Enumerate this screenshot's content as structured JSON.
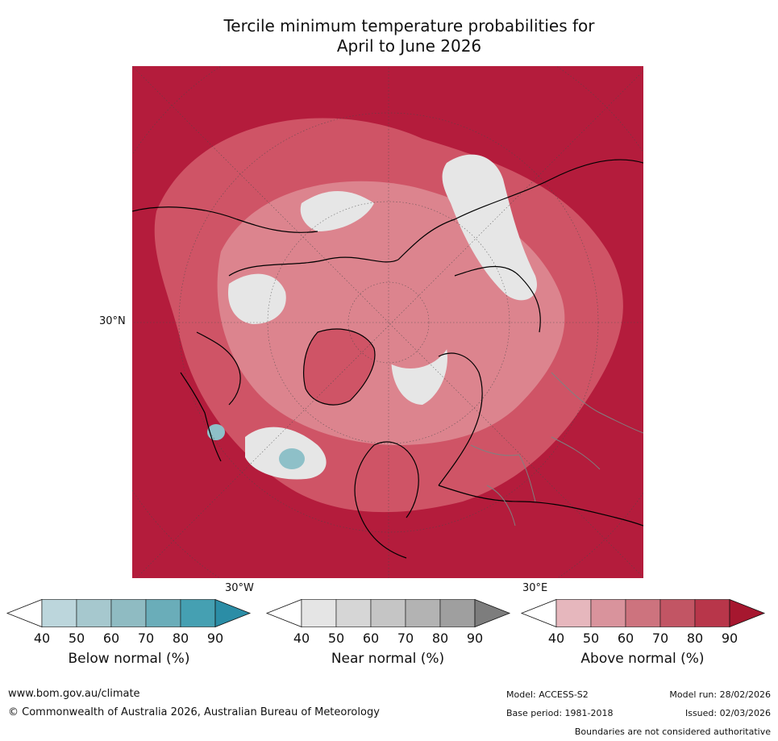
{
  "title": {
    "line1": "Tercile minimum temperature probabilities for",
    "line2": "April to June 2026"
  },
  "map": {
    "lat_label": "30°N",
    "lon_label_west": "30°W",
    "lon_label_east": "30°E",
    "colors": {
      "above_high": "#b41c3c",
      "above_mid": "#cf5466",
      "above_low": "#dc848e",
      "near_normal": "#e6e6e6",
      "below_normal": "#8ec0c8",
      "ocean_deep": "#b01a38",
      "coastline": "#000000",
      "border": "#808080"
    }
  },
  "colorbars": [
    {
      "label": "Below normal (%)",
      "ticks": [
        "40",
        "50",
        "60",
        "70",
        "80",
        "90"
      ],
      "colors": [
        "#ffffff",
        "#bcd6dc",
        "#a6c8ce",
        "#8fbbc2",
        "#6aadb9",
        "#45a0b2",
        "#2b8da6"
      ]
    },
    {
      "label": "Near normal (%)",
      "ticks": [
        "40",
        "50",
        "60",
        "70",
        "80",
        "90"
      ],
      "colors": [
        "#ffffff",
        "#e5e5e5",
        "#d6d6d6",
        "#c5c5c5",
        "#b3b3b3",
        "#9f9f9f",
        "#7d7d7d"
      ]
    },
    {
      "label": "Above normal (%)",
      "ticks": [
        "40",
        "50",
        "60",
        "70",
        "80",
        "90"
      ],
      "colors": [
        "#ffffff",
        "#e6b7bd",
        "#d9939c",
        "#cd737e",
        "#c25564",
        "#b8364a",
        "#a6172f"
      ]
    }
  ],
  "footer": {
    "url": "www.bom.gov.au/climate",
    "copyright": "© Commonwealth of Australia 2026, Australian Bureau of Meteorology",
    "model": "Model: ACCESS-S2",
    "base_period": "Base period: 1981-2018",
    "model_run": "Model run: 28/02/2026",
    "issued": "Issued: 02/03/2026",
    "disclaimer": "Boundaries are not considered authoritative"
  }
}
